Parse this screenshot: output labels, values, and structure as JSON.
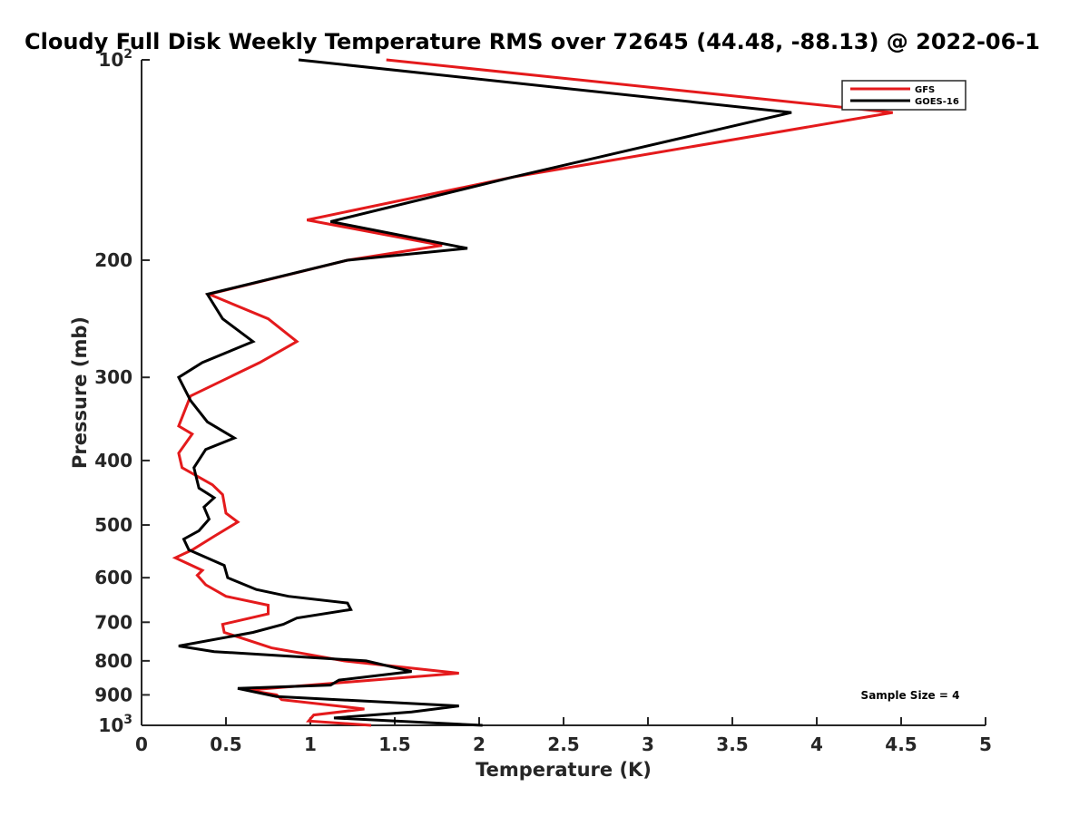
{
  "chart_data": {
    "type": "line",
    "title": "Cloudy Full Disk Weekly Temperature RMS over 72645 (44.48, -88.13) @ 2022-06-1",
    "xlabel": "Temperature (K)",
    "ylabel": "Pressure (mb)",
    "xlim": [
      0,
      5
    ],
    "ylim": [
      100,
      1000
    ],
    "y_scale": "log",
    "y_reversed": true,
    "grid": false,
    "legend_position": "top-right",
    "x_ticks": [
      0,
      0.5,
      1,
      1.5,
      2,
      2.5,
      3,
      3.5,
      4,
      4.5,
      5
    ],
    "x_tick_labels": [
      "0",
      "0.5",
      "1",
      "1.5",
      "2",
      "2.5",
      "3",
      "3.5",
      "4",
      "4.5",
      "5"
    ],
    "y_ticks": [
      {
        "value": 100,
        "base": "10",
        "exp": "2"
      },
      {
        "value": 200,
        "label": "200"
      },
      {
        "value": 300,
        "label": "300"
      },
      {
        "value": 400,
        "label": "400"
      },
      {
        "value": 500,
        "label": "500"
      },
      {
        "value": 600,
        "label": "600"
      },
      {
        "value": 700,
        "label": "700"
      },
      {
        "value": 800,
        "label": "800"
      },
      {
        "value": 900,
        "label": "900"
      },
      {
        "value": 1000,
        "base": "10",
        "exp": "3"
      }
    ],
    "series": [
      {
        "name": "GFS",
        "color": "#e41a1c",
        "points": [
          [
            1.45,
            100
          ],
          [
            4.45,
            120
          ],
          [
            2.2,
            150
          ],
          [
            0.98,
            174
          ],
          [
            1.78,
            190
          ],
          [
            1.22,
            200
          ],
          [
            0.4,
            225
          ],
          [
            0.75,
            245
          ],
          [
            0.92,
            265
          ],
          [
            0.7,
            285
          ],
          [
            0.29,
            320
          ],
          [
            0.22,
            355
          ],
          [
            0.3,
            365
          ],
          [
            0.22,
            390
          ],
          [
            0.24,
            410
          ],
          [
            0.42,
            435
          ],
          [
            0.48,
            450
          ],
          [
            0.5,
            480
          ],
          [
            0.57,
            495
          ],
          [
            0.43,
            520
          ],
          [
            0.3,
            545
          ],
          [
            0.2,
            560
          ],
          [
            0.36,
            585
          ],
          [
            0.33,
            595
          ],
          [
            0.38,
            615
          ],
          [
            0.5,
            640
          ],
          [
            0.75,
            660
          ],
          [
            0.75,
            680
          ],
          [
            0.48,
            705
          ],
          [
            0.49,
            725
          ],
          [
            0.77,
            765
          ],
          [
            1.2,
            800
          ],
          [
            1.88,
            835
          ],
          [
            1.25,
            860
          ],
          [
            0.63,
            885
          ],
          [
            0.8,
            900
          ],
          [
            0.83,
            915
          ],
          [
            1.32,
            945
          ],
          [
            1.02,
            965
          ],
          [
            0.99,
            985
          ],
          [
            1.36,
            1000
          ]
        ]
      },
      {
        "name": "GOES-16",
        "color": "#000000",
        "points": [
          [
            0.93,
            100
          ],
          [
            3.85,
            120
          ],
          [
            2.2,
            150
          ],
          [
            1.12,
            175
          ],
          [
            1.93,
            192
          ],
          [
            1.22,
            200
          ],
          [
            0.39,
            225
          ],
          [
            0.48,
            245
          ],
          [
            0.66,
            265
          ],
          [
            0.36,
            285
          ],
          [
            0.22,
            300
          ],
          [
            0.29,
            325
          ],
          [
            0.39,
            350
          ],
          [
            0.55,
            370
          ],
          [
            0.38,
            385
          ],
          [
            0.31,
            410
          ],
          [
            0.34,
            440
          ],
          [
            0.43,
            455
          ],
          [
            0.37,
            470
          ],
          [
            0.4,
            490
          ],
          [
            0.34,
            510
          ],
          [
            0.25,
            525
          ],
          [
            0.28,
            545
          ],
          [
            0.49,
            575
          ],
          [
            0.51,
            600
          ],
          [
            0.68,
            625
          ],
          [
            0.87,
            640
          ],
          [
            1.22,
            655
          ],
          [
            1.24,
            670
          ],
          [
            0.92,
            690
          ],
          [
            0.84,
            705
          ],
          [
            0.66,
            725
          ],
          [
            0.22,
            760
          ],
          [
            0.43,
            775
          ],
          [
            1.33,
            800
          ],
          [
            1.6,
            830
          ],
          [
            1.17,
            855
          ],
          [
            1.12,
            870
          ],
          [
            0.57,
            880
          ],
          [
            0.8,
            905
          ],
          [
            1.88,
            935
          ],
          [
            1.6,
            955
          ],
          [
            1.14,
            975
          ],
          [
            2.02,
            1000
          ]
        ]
      }
    ],
    "annotation": "Sample Size = 4"
  }
}
